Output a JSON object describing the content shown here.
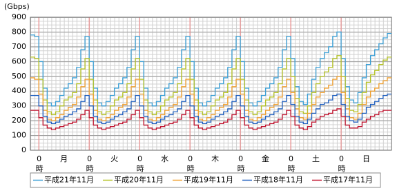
{
  "chart_data": {
    "type": "line",
    "line_style": "step",
    "y_unit_label": "(Gbps)",
    "x": [
      -4,
      -2,
      0,
      2,
      4,
      6,
      8,
      10,
      12,
      14,
      16,
      18,
      20,
      22,
      24,
      26,
      28,
      30,
      32,
      34,
      36,
      38,
      40,
      42,
      44,
      46,
      48,
      50,
      52,
      54,
      56,
      58,
      60,
      62,
      64,
      66,
      68,
      70,
      72,
      74,
      76,
      78,
      80,
      82,
      84,
      86,
      88,
      90,
      92,
      94,
      96,
      98,
      100,
      102,
      104,
      106,
      108,
      110,
      112,
      114,
      116,
      118,
      120,
      122,
      124,
      126,
      128,
      130,
      132,
      134,
      136,
      138,
      140,
      142,
      144,
      146,
      148,
      150,
      152,
      154,
      156,
      158,
      160,
      162,
      164,
      166
    ],
    "xlim": [
      -4,
      168
    ],
    "xticks": [
      {
        "value": 0,
        "label": "0時"
      },
      {
        "value": 24,
        "label": "0時"
      },
      {
        "value": 48,
        "label": "0時"
      },
      {
        "value": 72,
        "label": "0時"
      },
      {
        "value": 96,
        "label": "0時"
      },
      {
        "value": 120,
        "label": "0時"
      },
      {
        "value": 144,
        "label": "0時"
      }
    ],
    "day_labels": [
      {
        "value": 12,
        "label": "月"
      },
      {
        "value": 36,
        "label": "火"
      },
      {
        "value": 60,
        "label": "水"
      },
      {
        "value": 84,
        "label": "木"
      },
      {
        "value": 108,
        "label": "金"
      },
      {
        "value": 132,
        "label": "土"
      },
      {
        "value": 156,
        "label": "日"
      }
    ],
    "ylim": [
      0,
      900
    ],
    "yticks": [
      0,
      100,
      200,
      300,
      400,
      500,
      600,
      700,
      800,
      900
    ],
    "grid": true,
    "legend": "bottom",
    "series": [
      {
        "name": "平成21年11月",
        "color": "#3a9fd6",
        "values": [
          780,
          770,
          600,
          420,
          320,
          300,
          330,
          370,
          420,
          450,
          490,
          560,
          680,
          770,
          600,
          420,
          320,
          300,
          330,
          370,
          420,
          450,
          490,
          560,
          680,
          770,
          600,
          420,
          320,
          300,
          330,
          370,
          420,
          450,
          490,
          560,
          680,
          770,
          600,
          420,
          320,
          300,
          330,
          370,
          420,
          450,
          490,
          560,
          680,
          770,
          600,
          420,
          320,
          300,
          330,
          370,
          420,
          450,
          490,
          560,
          680,
          770,
          620,
          430,
          330,
          310,
          380,
          480,
          560,
          620,
          660,
          700,
          770,
          800,
          620,
          430,
          340,
          320,
          390,
          490,
          580,
          640,
          680,
          720,
          760,
          790
        ]
      },
      {
        "name": "平成20年11月",
        "color": "#b4c224",
        "values": [
          630,
          620,
          480,
          340,
          260,
          240,
          260,
          300,
          340,
          360,
          390,
          450,
          550,
          620,
          480,
          340,
          260,
          240,
          260,
          300,
          340,
          360,
          390,
          450,
          550,
          620,
          480,
          340,
          260,
          240,
          260,
          300,
          340,
          360,
          390,
          450,
          550,
          620,
          480,
          340,
          260,
          240,
          260,
          300,
          340,
          360,
          390,
          450,
          550,
          620,
          480,
          340,
          260,
          240,
          260,
          300,
          340,
          360,
          390,
          450,
          550,
          620,
          500,
          350,
          260,
          250,
          300,
          390,
          450,
          500,
          530,
          560,
          620,
          640,
          500,
          350,
          270,
          260,
          310,
          390,
          460,
          510,
          540,
          580,
          610,
          630
        ]
      },
      {
        "name": "平成19年11月",
        "color": "#f0a030",
        "values": [
          490,
          480,
          380,
          270,
          210,
          200,
          220,
          240,
          270,
          290,
          310,
          360,
          430,
          480,
          380,
          270,
          210,
          200,
          220,
          240,
          270,
          290,
          310,
          360,
          430,
          480,
          380,
          270,
          210,
          200,
          220,
          240,
          270,
          290,
          310,
          360,
          430,
          480,
          380,
          270,
          210,
          200,
          220,
          240,
          270,
          290,
          310,
          360,
          430,
          480,
          380,
          270,
          210,
          200,
          220,
          240,
          270,
          290,
          310,
          360,
          430,
          480,
          390,
          280,
          220,
          210,
          250,
          310,
          360,
          390,
          420,
          440,
          480,
          500,
          390,
          280,
          220,
          210,
          250,
          310,
          360,
          400,
          420,
          450,
          470,
          490
        ]
      },
      {
        "name": "平成18年11月",
        "color": "#1f5fbf",
        "values": [
          370,
          370,
          300,
          230,
          190,
          180,
          190,
          210,
          230,
          240,
          260,
          280,
          330,
          370,
          300,
          230,
          190,
          180,
          190,
          210,
          230,
          240,
          260,
          280,
          330,
          370,
          300,
          230,
          190,
          180,
          190,
          210,
          230,
          240,
          260,
          280,
          330,
          370,
          300,
          230,
          190,
          180,
          190,
          210,
          230,
          240,
          260,
          280,
          330,
          370,
          300,
          230,
          190,
          180,
          190,
          210,
          230,
          240,
          260,
          280,
          330,
          370,
          310,
          230,
          190,
          180,
          210,
          250,
          280,
          310,
          320,
          340,
          370,
          380,
          310,
          230,
          200,
          190,
          210,
          250,
          290,
          310,
          330,
          350,
          370,
          380
        ]
      },
      {
        "name": "平成17年11月",
        "color": "#c0102c",
        "values": [
          270,
          270,
          220,
          170,
          150,
          140,
          150,
          160,
          170,
          180,
          190,
          210,
          240,
          270,
          220,
          170,
          150,
          140,
          150,
          160,
          170,
          180,
          190,
          210,
          240,
          270,
          220,
          170,
          150,
          140,
          150,
          160,
          170,
          180,
          190,
          210,
          240,
          270,
          220,
          170,
          150,
          140,
          150,
          160,
          170,
          180,
          190,
          210,
          240,
          270,
          220,
          170,
          150,
          140,
          150,
          160,
          170,
          180,
          190,
          210,
          240,
          270,
          230,
          170,
          150,
          140,
          160,
          190,
          210,
          230,
          240,
          250,
          270,
          280,
          230,
          170,
          150,
          150,
          160,
          190,
          210,
          230,
          240,
          260,
          270,
          270
        ]
      }
    ]
  }
}
